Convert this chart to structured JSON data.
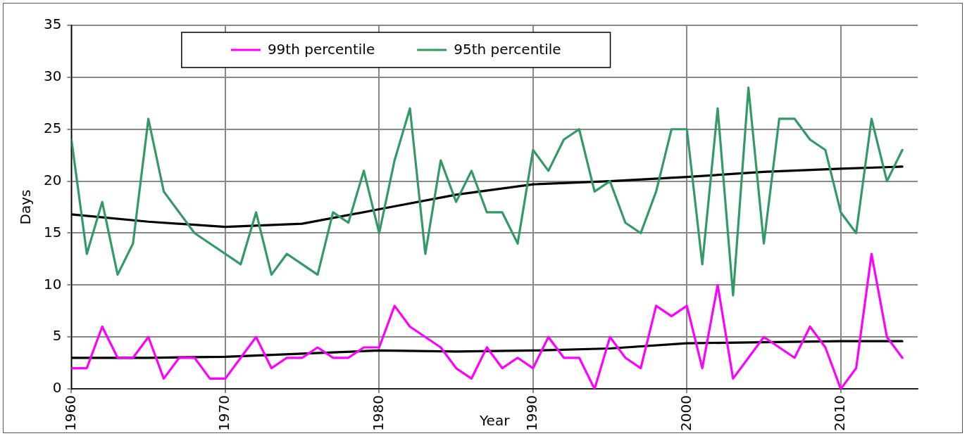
{
  "chart_data": {
    "type": "line",
    "xlabel": "Year",
    "ylabel": "Days",
    "xlim": [
      1960,
      2015
    ],
    "xticks": [
      1960,
      1970,
      1980,
      1990,
      2000,
      2010
    ],
    "ylim": [
      0,
      35
    ],
    "yticks": [
      0,
      5,
      10,
      15,
      20,
      25,
      30,
      35
    ],
    "grid": true,
    "legend": "top",
    "marker": "none",
    "line_style": "solid",
    "x": [
      1960,
      1961,
      1962,
      1963,
      1964,
      1965,
      1966,
      1967,
      1968,
      1969,
      1970,
      1971,
      1972,
      1973,
      1974,
      1975,
      1976,
      1977,
      1978,
      1979,
      1980,
      1981,
      1982,
      1983,
      1984,
      1985,
      1986,
      1987,
      1988,
      1989,
      1990,
      1991,
      1992,
      1993,
      1994,
      1995,
      1996,
      1997,
      1998,
      1999,
      2000,
      2001,
      2002,
      2003,
      2004,
      2005,
      2006,
      2007,
      2008,
      2009,
      2010,
      2011,
      2012,
      2013,
      2014
    ],
    "series": [
      {
        "name": "99th percentile",
        "color": "#ff00ff",
        "values": [
          2,
          2,
          6,
          3,
          3,
          5,
          1,
          3,
          3,
          1,
          1,
          3,
          5,
          2,
          3,
          3,
          4,
          3,
          3,
          4,
          4,
          8,
          6,
          5,
          4,
          2,
          1,
          4,
          2,
          3,
          2,
          5,
          3,
          3,
          0,
          5,
          3,
          2,
          8,
          7,
          8,
          2,
          10,
          1,
          3,
          5,
          4,
          3,
          6,
          4,
          0,
          2,
          13,
          5,
          3
        ]
      },
      {
        "name": "95th percentile",
        "color": "#339966",
        "values": [
          24,
          13,
          18,
          11,
          14,
          26,
          19,
          17,
          15,
          14,
          13,
          12,
          17,
          11,
          13,
          12,
          11,
          17,
          16,
          21,
          15,
          22,
          27,
          13,
          22,
          18,
          21,
          17,
          17,
          14,
          23,
          21,
          24,
          25,
          19,
          20,
          16,
          15,
          19,
          25,
          25,
          12,
          27,
          9,
          29,
          14,
          26,
          26,
          24,
          23,
          17,
          15,
          26,
          20,
          23
        ]
      },
      {
        "color": "#000000",
        "x": [
          1960,
          1965,
          1970,
          1975,
          1980,
          1985,
          1990,
          1995,
          2000,
          2005,
          2010,
          2014
        ],
        "values": [
          3.0,
          3.0,
          3.1,
          3.4,
          3.7,
          3.6,
          3.7,
          3.9,
          4.4,
          4.5,
          4.6,
          4.6
        ]
      },
      {
        "color": "#000000",
        "x": [
          1960,
          1965,
          1970,
          1975,
          1980,
          1985,
          1990,
          1995,
          2000,
          2005,
          2010,
          2014
        ],
        "values": [
          16.8,
          16.1,
          15.6,
          15.9,
          17.3,
          18.7,
          19.7,
          20.0,
          20.4,
          20.9,
          21.2,
          21.4
        ]
      }
    ]
  }
}
